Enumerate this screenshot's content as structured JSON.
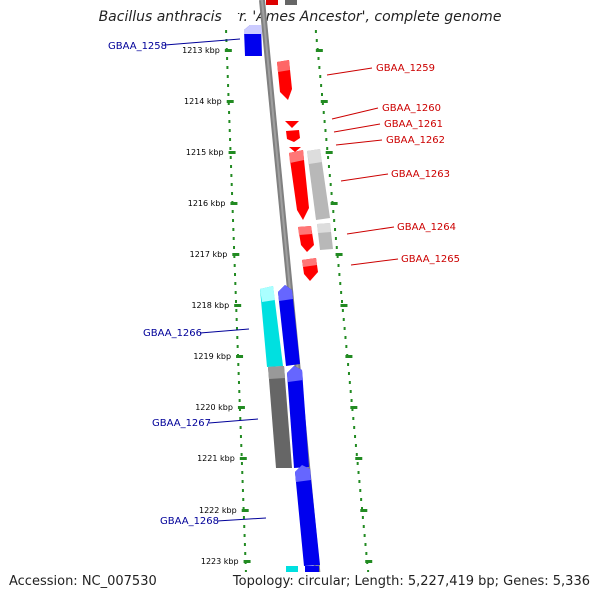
{
  "title": "Bacillus anthracis str. 'Ames Ancestor', complete genome",
  "accession": "Accession: NC_007530",
  "summary": "Topology: circular; Length: 5,227,419 bp; Genes: 5,336",
  "colors": {
    "forward": "#ff0000",
    "reverse": "#0000ee",
    "forward_label": "#cc0000",
    "reverse_label": "#000099",
    "cyan": "#00ffff",
    "gray": "#b8b8b8",
    "darkgray": "#666666",
    "axis": "#808080",
    "ruler": "#228b22"
  },
  "ruler_labels": [
    "1213 kbp",
    "1214 kbp",
    "1215 kbp",
    "1216 kbp",
    "1217 kbp",
    "1218 kbp",
    "1219 kbp",
    "1220 kbp",
    "1221 kbp",
    "1222 kbp",
    "1223 kbp"
  ],
  "genes": [
    {
      "label": "GBAA_1258",
      "strand": "reverse"
    },
    {
      "label": "GBAA_1259",
      "strand": "forward"
    },
    {
      "label": "GBAA_1260",
      "strand": "forward"
    },
    {
      "label": "GBAA_1261",
      "strand": "forward"
    },
    {
      "label": "GBAA_1262",
      "strand": "forward"
    },
    {
      "label": "GBAA_1263",
      "strand": "forward"
    },
    {
      "label": "GBAA_1264",
      "strand": "forward"
    },
    {
      "label": "GBAA_1265",
      "strand": "forward"
    },
    {
      "label": "GBAA_1266",
      "strand": "reverse"
    },
    {
      "label": "GBAA_1267",
      "strand": "reverse"
    },
    {
      "label": "GBAA_1268",
      "strand": "reverse"
    }
  ]
}
